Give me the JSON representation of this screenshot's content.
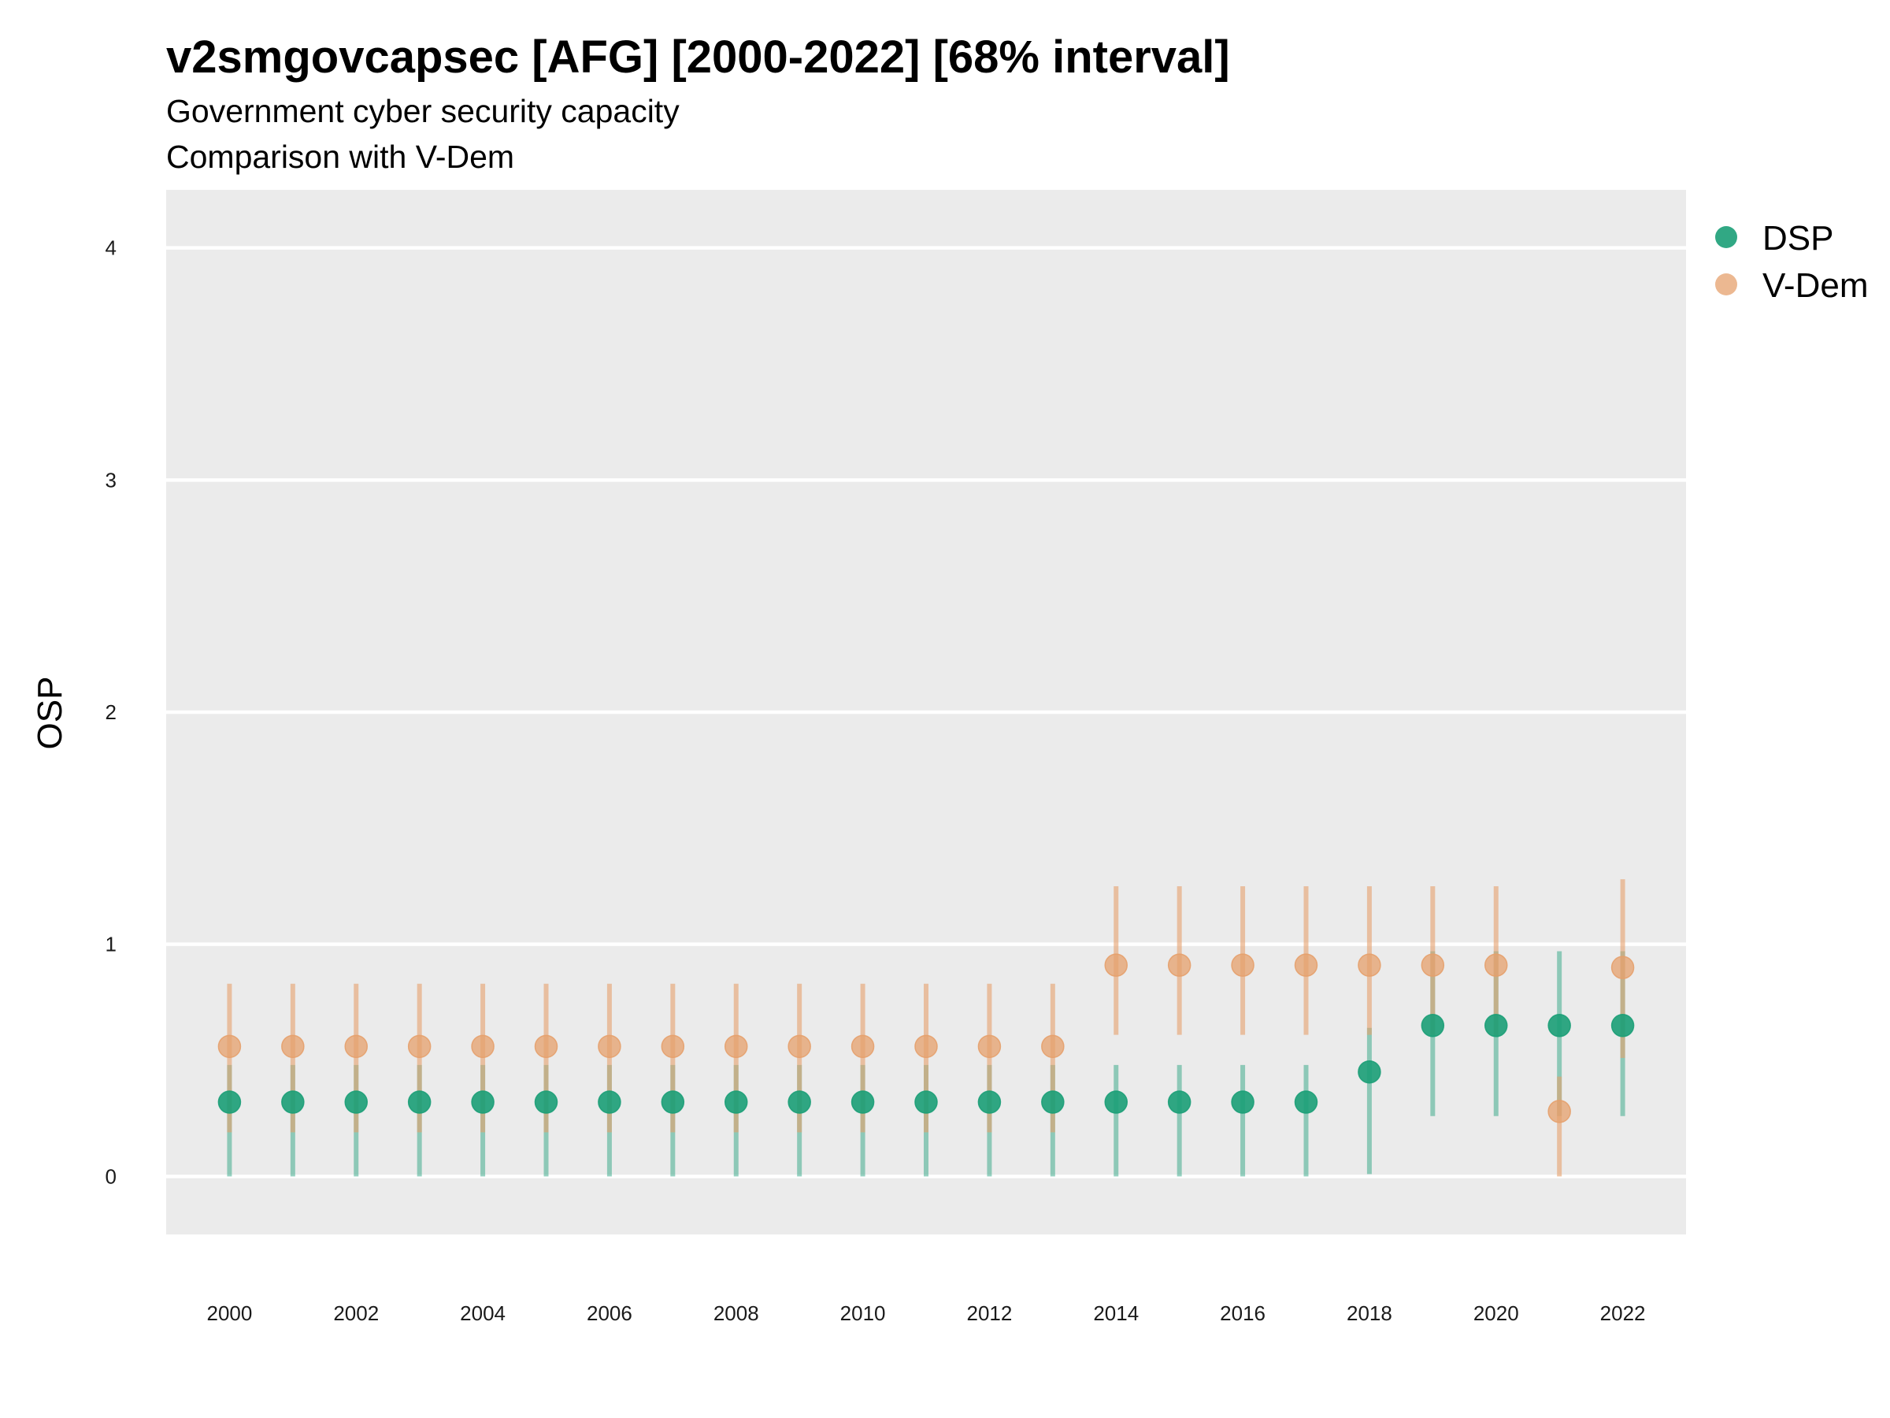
{
  "chart_data": {
    "type": "scatter",
    "title": "v2smgovcapsec [AFG] [2000-2022] [68% interval]",
    "subtitle": "Government cyber security capacity",
    "subtitle2": "Comparison with V-Dem",
    "ylabel": "OSP",
    "xlabel": "",
    "ylim": [
      -0.25,
      4.25
    ],
    "xlim": [
      1999,
      2023
    ],
    "yticks": [
      "0",
      "1",
      "2",
      "3",
      "4"
    ],
    "xticks": [
      "2000",
      "2002",
      "2004",
      "2006",
      "2008",
      "2010",
      "2012",
      "2014",
      "2016",
      "2018",
      "2020",
      "2022"
    ],
    "x": [
      2000,
      2001,
      2002,
      2003,
      2004,
      2005,
      2006,
      2007,
      2008,
      2009,
      2010,
      2011,
      2012,
      2013,
      2014,
      2015,
      2016,
      2017,
      2018,
      2019,
      2020,
      2021,
      2022
    ],
    "grid": true,
    "legend_position": "top-right",
    "series": [
      {
        "name": "DSP",
        "color": "#1b9e77",
        "values": [
          0.32,
          0.32,
          0.32,
          0.32,
          0.32,
          0.32,
          0.32,
          0.32,
          0.32,
          0.32,
          0.32,
          0.32,
          0.32,
          0.32,
          0.32,
          0.32,
          0.32,
          0.32,
          0.45,
          0.65,
          0.65,
          0.65,
          0.65
        ],
        "lower": [
          0,
          0,
          0,
          0,
          0,
          0,
          0,
          0,
          0,
          0,
          0,
          0,
          0,
          0,
          0,
          0,
          0,
          0,
          0.01,
          0.26,
          0.26,
          0.26,
          0.26
        ],
        "upper": [
          0.48,
          0.48,
          0.48,
          0.48,
          0.48,
          0.48,
          0.48,
          0.48,
          0.48,
          0.48,
          0.48,
          0.48,
          0.48,
          0.48,
          0.48,
          0.48,
          0.48,
          0.48,
          0.64,
          0.97,
          0.97,
          0.97,
          0.97
        ]
      },
      {
        "name": "V-Dem",
        "color": "#e6a06c",
        "values": [
          0.56,
          0.56,
          0.56,
          0.56,
          0.56,
          0.56,
          0.56,
          0.56,
          0.56,
          0.56,
          0.56,
          0.56,
          0.56,
          0.56,
          0.91,
          0.91,
          0.91,
          0.91,
          0.91,
          0.91,
          0.91,
          0.28,
          0.9
        ],
        "lower": [
          0.19,
          0.19,
          0.19,
          0.19,
          0.19,
          0.19,
          0.19,
          0.19,
          0.19,
          0.19,
          0.19,
          0.19,
          0.19,
          0.19,
          0.61,
          0.61,
          0.61,
          0.61,
          0.61,
          0.61,
          0.61,
          0,
          0.51
        ],
        "upper": [
          0.83,
          0.83,
          0.83,
          0.83,
          0.83,
          0.83,
          0.83,
          0.83,
          0.83,
          0.83,
          0.83,
          0.83,
          0.83,
          0.83,
          1.25,
          1.25,
          1.25,
          1.25,
          1.25,
          1.25,
          1.25,
          0.43,
          1.28
        ]
      }
    ]
  }
}
